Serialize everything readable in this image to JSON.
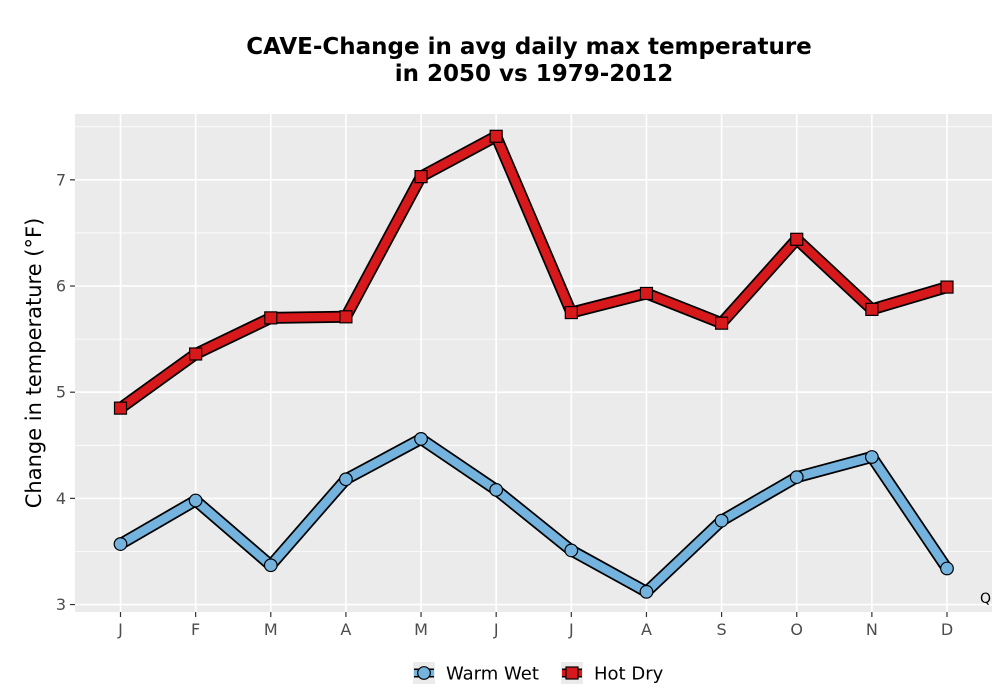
{
  "chart_data": {
    "type": "line",
    "title_lines": [
      "CAVE-Change in avg daily max temperature",
      "in 2050 vs 1979-2012"
    ],
    "xlabel": "",
    "ylabel": "Change in temperature (°F)",
    "categories": [
      "J",
      "F",
      "M",
      "A",
      "M",
      "J",
      "J",
      "A",
      "S",
      "O",
      "N",
      "D"
    ],
    "y_ticks": [
      3,
      4,
      5,
      6,
      7
    ],
    "ylim": [
      2.93,
      7.62
    ],
    "grid": true,
    "legend_position": "bottom",
    "series": [
      {
        "name": "Warm Wet",
        "marker": "circle",
        "color": "#74b3de",
        "values": [
          3.57,
          3.98,
          3.37,
          4.18,
          4.56,
          4.08,
          3.51,
          3.12,
          3.79,
          4.2,
          4.39,
          3.34
        ]
      },
      {
        "name": "Hot Dry",
        "marker": "square",
        "color": "#d7191c",
        "values": [
          4.85,
          5.36,
          5.7,
          5.71,
          7.03,
          7.41,
          5.75,
          5.93,
          5.65,
          6.44,
          5.78,
          5.99
        ]
      }
    ],
    "corner_annotation": "Q"
  }
}
